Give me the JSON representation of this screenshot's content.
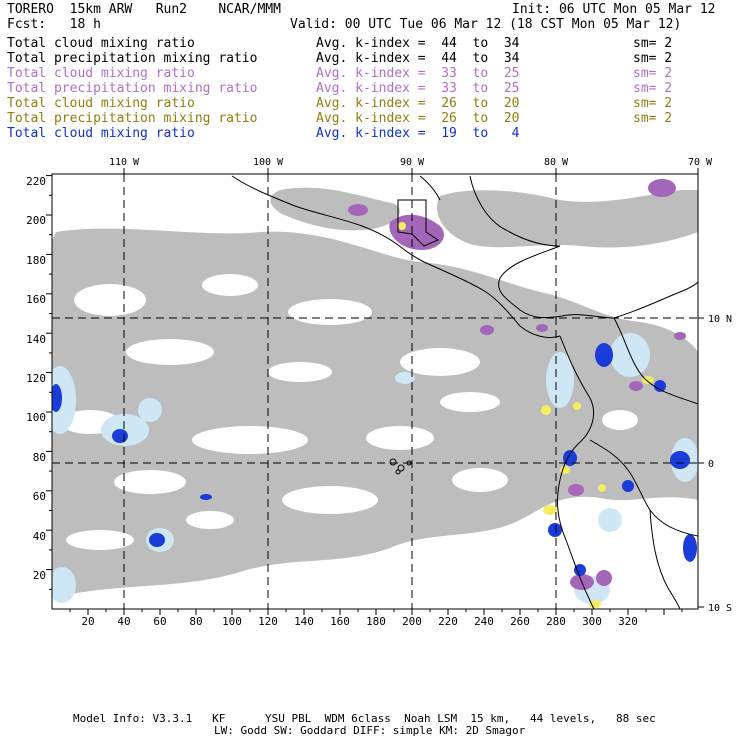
{
  "header": {
    "model": "TORERO  15km ARW   Run2    NCAR/MMM",
    "init": "Init: 06 UTC Mon 05 Mar 12",
    "fcst": "Fcst:   18 h",
    "valid": "Valid: 00 UTC Tue 06 Mar 12 (18 CST Mon 05 Mar 12)"
  },
  "fields": [
    {
      "name": "Total cloud mixing ratio",
      "kindex": "Avg. k-index =  44  to  34",
      "sm": "sm= 2",
      "color": "#000000"
    },
    {
      "name": "Total precipitation mixing ratio",
      "kindex": "Avg. k-index =  44  to  34",
      "sm": "sm= 2",
      "color": "#000000"
    },
    {
      "name": "Total cloud mixing ratio",
      "kindex": "Avg. k-index =  33  to  25",
      "sm": "sm= 2",
      "color": "#b070c8"
    },
    {
      "name": "Total precipitation mixing ratio",
      "kindex": "Avg. k-index =  33  to  25",
      "sm": "sm= 2",
      "color": "#b070c8"
    },
    {
      "name": "Total cloud mixing ratio",
      "kindex": "Avg. k-index =  26  to  20",
      "sm": "sm= 2",
      "color": "#908010"
    },
    {
      "name": "Total precipitation mixing ratio",
      "kindex": "Avg. k-index =  26  to  20",
      "sm": "sm= 2",
      "color": "#908010"
    },
    {
      "name": "Total cloud mixing ratio",
      "kindex": "Avg. k-index =  19  to   4",
      "sm": "",
      "color": "#1030d0"
    }
  ],
  "map": {
    "top_ticks": [
      "110 W",
      "100 W",
      "90 W",
      "80 W",
      "70 W"
    ],
    "right_ticks": [
      "10 N",
      "0",
      "10 S"
    ],
    "x_ticks": [
      "20",
      "40",
      "60",
      "80",
      "100",
      "120",
      "140",
      "160",
      "180",
      "200",
      "220",
      "240",
      "260",
      "280",
      "300",
      "320"
    ],
    "y_ticks": [
      "220",
      "200",
      "180",
      "160",
      "140",
      "120",
      "100",
      "80",
      "60",
      "40",
      "20"
    ],
    "colors": {
      "cloud_gray": "#bdbdbd",
      "cloud_light": "#cfe6f5",
      "cloud_blue": "#1a3cd8",
      "precip_purple": "#a366b8",
      "precip_yellow": "#f2ee60"
    }
  },
  "footer": {
    "line1": "Model Info: V3.3.1   KF      YSU PBL  WDM 6class  Noah LSM  15 km,   44 levels,   88 sec",
    "line2": "LW: Godd SW: Goddard DIFF: simple KM: 2D Smagor"
  }
}
